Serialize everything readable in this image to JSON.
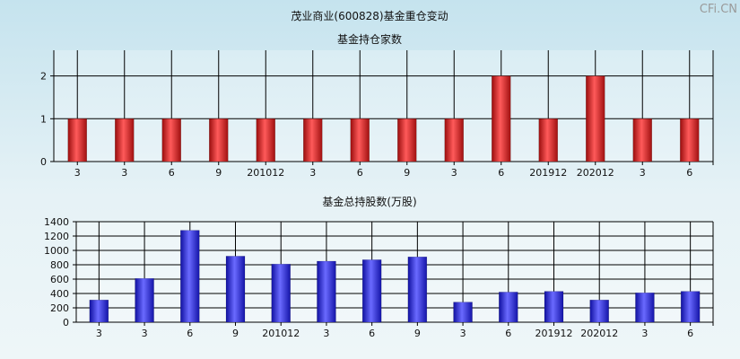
{
  "page_title": "茂业商业(600828)基金重仓变动",
  "watermark": "CFi.CN",
  "chart_data": [
    {
      "type": "bar",
      "title": "基金持仓家数",
      "categories": [
        "3",
        "3",
        "6",
        "9",
        "201012",
        "3",
        "6",
        "9",
        "3",
        "6",
        "201912",
        "202012",
        "3",
        "6"
      ],
      "values": [
        1,
        1,
        1,
        1,
        1,
        1,
        1,
        1,
        1,
        2,
        1,
        2,
        1,
        1
      ],
      "yticks": [
        0,
        1,
        2
      ],
      "ylim": [
        0,
        2.6
      ],
      "grid": true,
      "color": "#e02020"
    },
    {
      "type": "bar",
      "title": "基金总持股数(万股)",
      "categories": [
        "3",
        "3",
        "6",
        "9",
        "201012",
        "3",
        "6",
        "9",
        "3",
        "6",
        "201912",
        "202012",
        "3",
        "6"
      ],
      "values": [
        310,
        610,
        1280,
        920,
        810,
        850,
        870,
        910,
        280,
        420,
        430,
        310,
        410,
        430
      ],
      "yticks": [
        0,
        200,
        400,
        600,
        800,
        1000,
        1200,
        1400
      ],
      "ylim": [
        0,
        1400
      ],
      "grid": true,
      "color": "#2a2ad8"
    }
  ]
}
